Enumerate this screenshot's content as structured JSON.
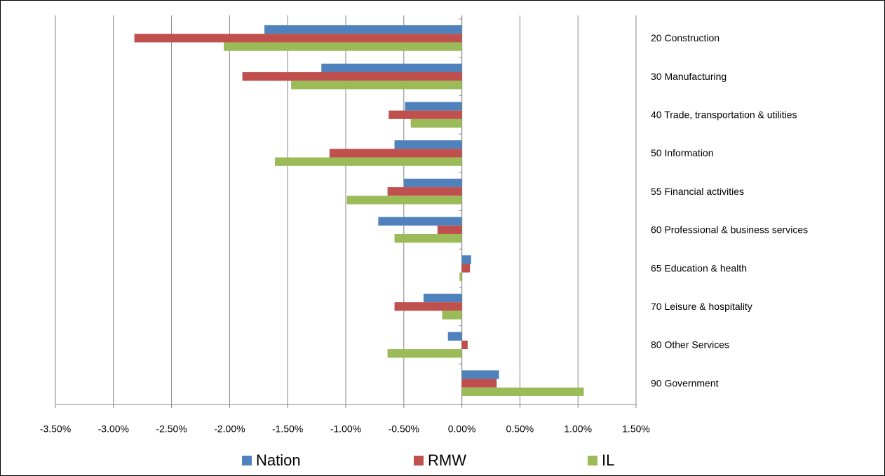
{
  "chart_data": {
    "type": "hbar",
    "categories": [
      "20 Construction",
      "30 Manufacturing",
      "40 Trade, transportation  & utilities",
      "50 Information",
      "55 Financial activities",
      "60 Professional & business services",
      "65 Education  & health",
      "70 Leisure & hospitality",
      "80 Other Services",
      "90 Government"
    ],
    "series": [
      {
        "name": "Nation",
        "color": "#4f81bd",
        "values": [
          -1.7,
          -1.21,
          -0.49,
          -0.58,
          -0.5,
          -0.72,
          0.08,
          -0.33,
          -0.12,
          0.32
        ]
      },
      {
        "name": "RMW",
        "color": "#c0504d",
        "values": [
          -2.82,
          -1.89,
          -0.63,
          -1.14,
          -0.64,
          -0.21,
          0.07,
          -0.58,
          0.05,
          0.3
        ]
      },
      {
        "name": "IL",
        "color": "#9bbb59",
        "values": [
          -2.05,
          -1.47,
          -0.44,
          -1.61,
          -0.99,
          -0.58,
          -0.02,
          -0.17,
          -0.64,
          1.05
        ]
      }
    ],
    "xlim": [
      -3.5,
      1.5
    ],
    "xticks": [
      {
        "value": -3.5,
        "label": "-3.50%"
      },
      {
        "value": -3.0,
        "label": "-3.00%"
      },
      {
        "value": -2.5,
        "label": "-2.50%"
      },
      {
        "value": -2.0,
        "label": "-2.00%"
      },
      {
        "value": -1.5,
        "label": "-1.50%"
      },
      {
        "value": -1.0,
        "label": "-1.00%"
      },
      {
        "value": -0.5,
        "label": "-0.50%"
      },
      {
        "value": 0,
        "label": "0.00%"
      },
      {
        "value": 0.5,
        "label": "0.50%"
      },
      {
        "value": 1.0,
        "label": "1.00%"
      },
      {
        "value": 1.5,
        "label": "1.50%"
      }
    ],
    "grid": true,
    "legend": "bottom"
  }
}
